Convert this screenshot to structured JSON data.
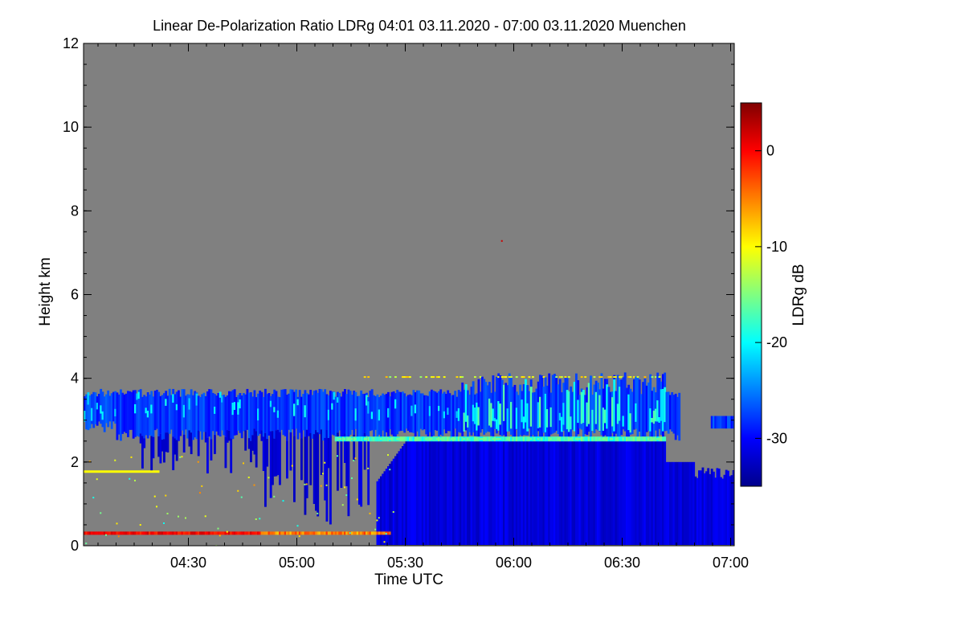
{
  "chart_data": {
    "type": "heatmap",
    "title": "Linear De-Polarization Ratio LDRg   04:01 03.11.2020 - 07:00 03.11.2020 Muenchen",
    "xlabel": "Time UTC",
    "ylabel": "Height km",
    "colorbar_label": "LDRg dB",
    "x_range_minutes": [
      241,
      421
    ],
    "x_ticks": [
      {
        "label": "04:30",
        "minutes": 270
      },
      {
        "label": "05:00",
        "minutes": 300
      },
      {
        "label": "05:30",
        "minutes": 330
      },
      {
        "label": "06:00",
        "minutes": 360
      },
      {
        "label": "06:30",
        "minutes": 390
      },
      {
        "label": "07:00",
        "minutes": 420
      }
    ],
    "y_range_km": [
      0,
      12
    ],
    "y_ticks": [
      0,
      2,
      4,
      6,
      8,
      10,
      12
    ],
    "colorbar_range_db": [
      -35,
      5
    ],
    "colorbar_ticks": [
      0,
      -10,
      -20,
      -30
    ],
    "colormap": [
      "#00008b",
      "#0000ff",
      "#0080ff",
      "#00ffff",
      "#80ff80",
      "#ffff00",
      "#ff8000",
      "#ff0000",
      "#800000"
    ],
    "background_color": "#808080",
    "layers": [
      {
        "feature": "Aerosol layer near surface",
        "height_km": 0.3,
        "ldr_db": -5
      },
      {
        "feature": "Cloud base band",
        "height_km": 2.55,
        "ldr_db": -15
      },
      {
        "feature": "Upper cloud top",
        "height_km": 4.05,
        "ldr_db": -12
      }
    ]
  }
}
